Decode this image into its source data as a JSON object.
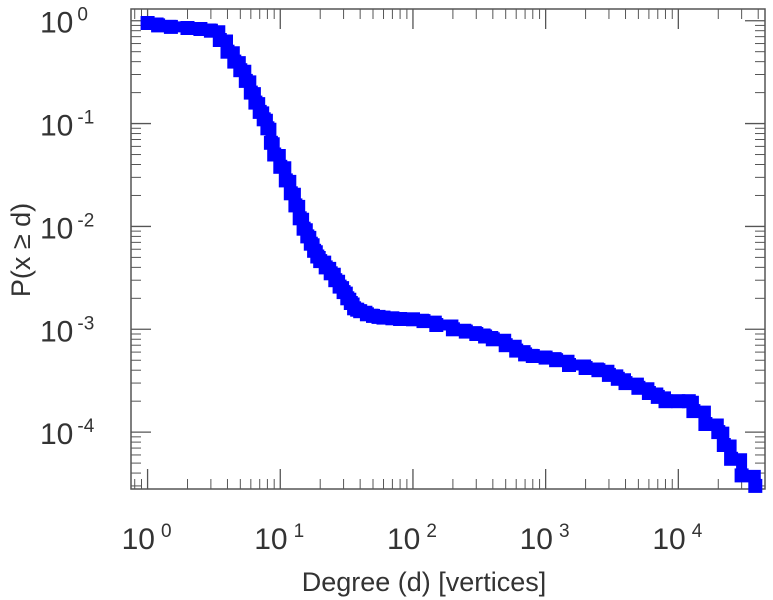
{
  "chart_data": {
    "type": "line",
    "step": true,
    "title": "",
    "xlabel": "Degree (d) [vertices]",
    "ylabel": "P(x ≥ d)",
    "xscale": "log",
    "yscale": "log",
    "xlim": [
      0.75,
      45000
    ],
    "ylim": [
      2.8e-05,
      1.3
    ],
    "grid": false,
    "legend": "none",
    "line_color": "#0000ff",
    "x_ticks": [
      {
        "base": "10",
        "exp": "0",
        "value": 1
      },
      {
        "base": "10",
        "exp": "1",
        "value": 10
      },
      {
        "base": "10",
        "exp": "2",
        "value": 100
      },
      {
        "base": "10",
        "exp": "3",
        "value": 1000
      },
      {
        "base": "10",
        "exp": "4",
        "value": 10000
      }
    ],
    "y_ticks": [
      {
        "base": "10",
        "exp": "0",
        "value": 1
      },
      {
        "base": "10",
        "exp": "-1",
        "value": 0.1
      },
      {
        "base": "10",
        "exp": "-2",
        "value": 0.01
      },
      {
        "base": "10",
        "exp": "-3",
        "value": 0.001
      },
      {
        "base": "10",
        "exp": "-4",
        "value": 0.0001
      }
    ],
    "series": [
      {
        "x": [
          1,
          1.2,
          1.5,
          2,
          2.5,
          3,
          3.5,
          4,
          4.5,
          5,
          5.5,
          6,
          6.5,
          7,
          7.5,
          8,
          8.5,
          9,
          10,
          11,
          12,
          13,
          14,
          15,
          16,
          17,
          18,
          19,
          20,
          22,
          24,
          26,
          28,
          30,
          32,
          34,
          36,
          38,
          40,
          45,
          50,
          55,
          60,
          70,
          80,
          100,
          120,
          150,
          200,
          250,
          300,
          350,
          400,
          500,
          600,
          700,
          800,
          1000,
          1200,
          1500,
          2000,
          2500,
          3000,
          3500,
          4000,
          5000,
          6000,
          7000,
          8000,
          10000,
          12000,
          13000,
          16000,
          20000,
          22000,
          25000,
          30000,
          38000
        ],
        "y": [
          0.95,
          0.9,
          0.87,
          0.85,
          0.83,
          0.8,
          0.65,
          0.5,
          0.4,
          0.33,
          0.26,
          0.2,
          0.16,
          0.13,
          0.11,
          0.09,
          0.065,
          0.05,
          0.038,
          0.028,
          0.021,
          0.016,
          0.012,
          0.0095,
          0.008,
          0.0068,
          0.0058,
          0.0051,
          0.0046,
          0.004,
          0.0035,
          0.003,
          0.0026,
          0.0023,
          0.002,
          0.0018,
          0.0016,
          0.00155,
          0.0015,
          0.0014,
          0.00135,
          0.00132,
          0.0013,
          0.00128,
          0.00126,
          0.00125,
          0.0012,
          0.0011,
          0.001,
          0.00095,
          0.0009,
          0.00085,
          0.0008,
          0.0007,
          0.00062,
          0.00057,
          0.00055,
          0.00053,
          0.0005,
          0.00045,
          0.00042,
          0.0004,
          0.00036,
          0.00033,
          0.0003,
          0.00027,
          0.00024,
          0.00022,
          0.0002,
          0.0002,
          0.0002,
          0.00016,
          0.00012,
          0.0001,
          7.5e-05,
          5.5e-05,
          3.8e-05,
          3e-05
        ]
      }
    ]
  }
}
